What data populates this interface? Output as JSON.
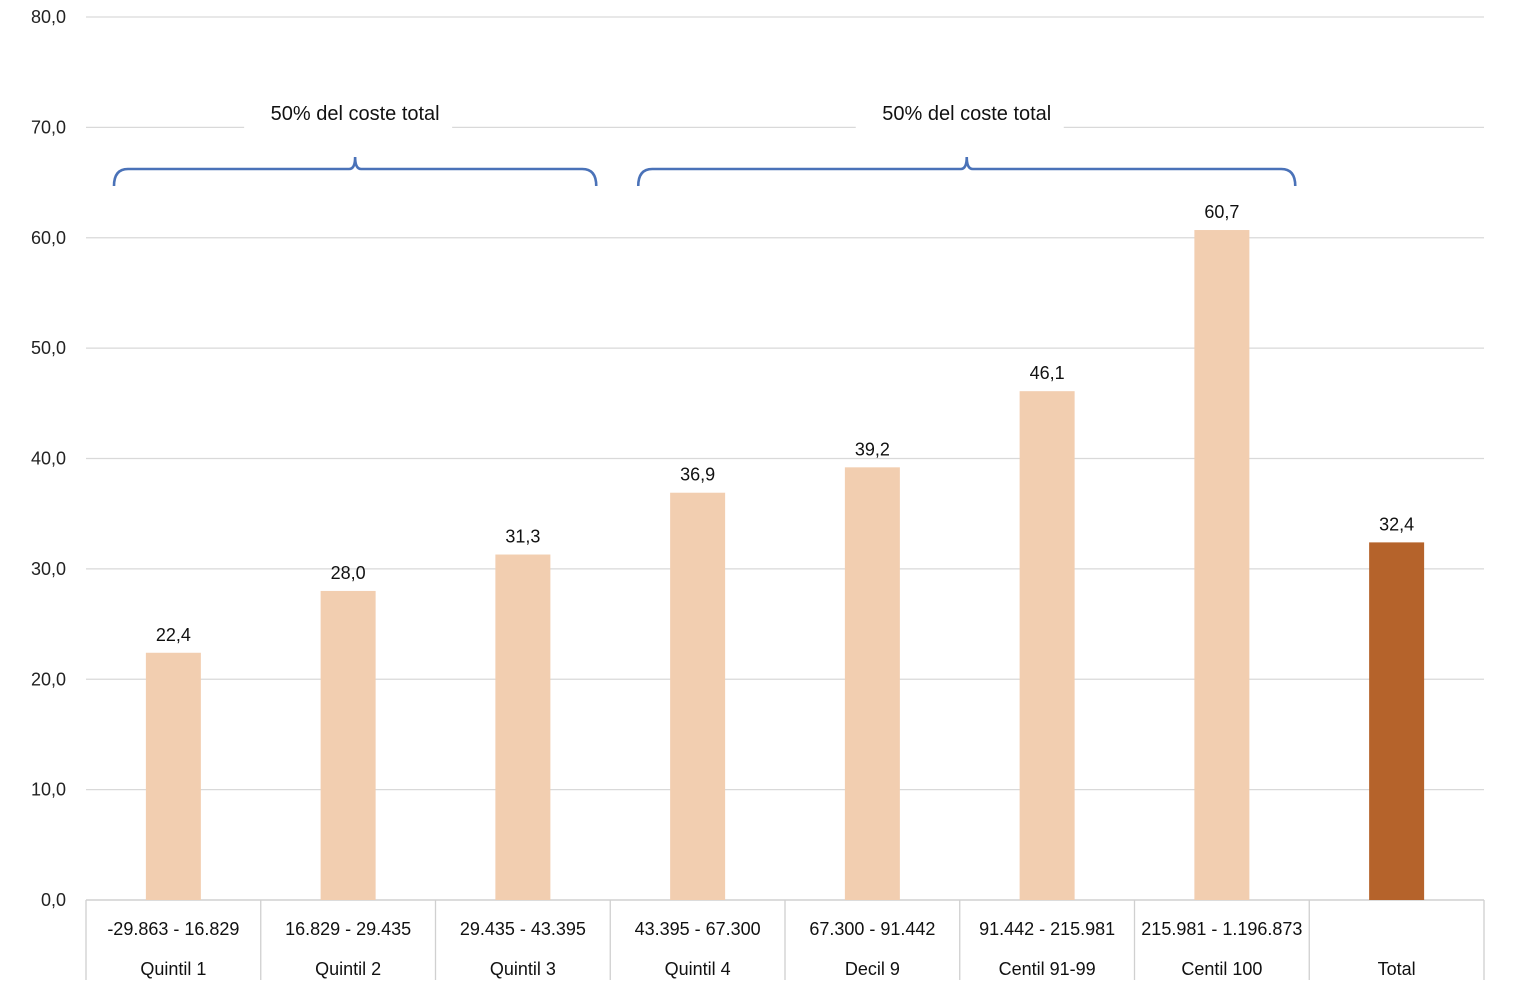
{
  "chart_data": {
    "type": "bar",
    "title": "",
    "xlabel": "",
    "ylabel": "",
    "ylim": [
      0,
      80
    ],
    "yticks": [
      "0,0",
      "10,0",
      "20,0",
      "30,0",
      "40,0",
      "50,0",
      "60,0",
      "70,0",
      "80,0"
    ],
    "grid": true,
    "categories": [
      {
        "range": "-29.863 - 16.829",
        "group": "Quintil 1"
      },
      {
        "range": "16.829 - 29.435",
        "group": "Quintil 2"
      },
      {
        "range": "29.435 - 43.395",
        "group": "Quintil 3"
      },
      {
        "range": "43.395 - 67.300",
        "group": "Quintil 4"
      },
      {
        "range": "67.300 - 91.442",
        "group": "Decil 9"
      },
      {
        "range": "91.442 - 215.981",
        "group": "Centil 91-99"
      },
      {
        "range": "215.981 - 1.196.873",
        "group": "Centil 100"
      },
      {
        "range": "",
        "group": "Total"
      }
    ],
    "values": [
      22.4,
      28.0,
      31.3,
      36.9,
      39.2,
      46.1,
      60.7,
      32.4
    ],
    "value_labels": [
      "22,4",
      "28,0",
      "31,3",
      "36,9",
      "39,2",
      "46,1",
      "60,7",
      "32,4"
    ],
    "bar_colors": [
      "#F2CEB0",
      "#F2CEB0",
      "#F2CEB0",
      "#F2CEB0",
      "#F2CEB0",
      "#F2CEB0",
      "#F2CEB0",
      "#B5632B"
    ],
    "annotations": [
      {
        "text": "50% del coste total",
        "from_category": 0,
        "to_category": 2
      },
      {
        "text": "50% del coste total",
        "from_category": 3,
        "to_category": 6
      }
    ],
    "bracket_color": "#4A72B8",
    "grid_color": "#D9D9D9"
  }
}
